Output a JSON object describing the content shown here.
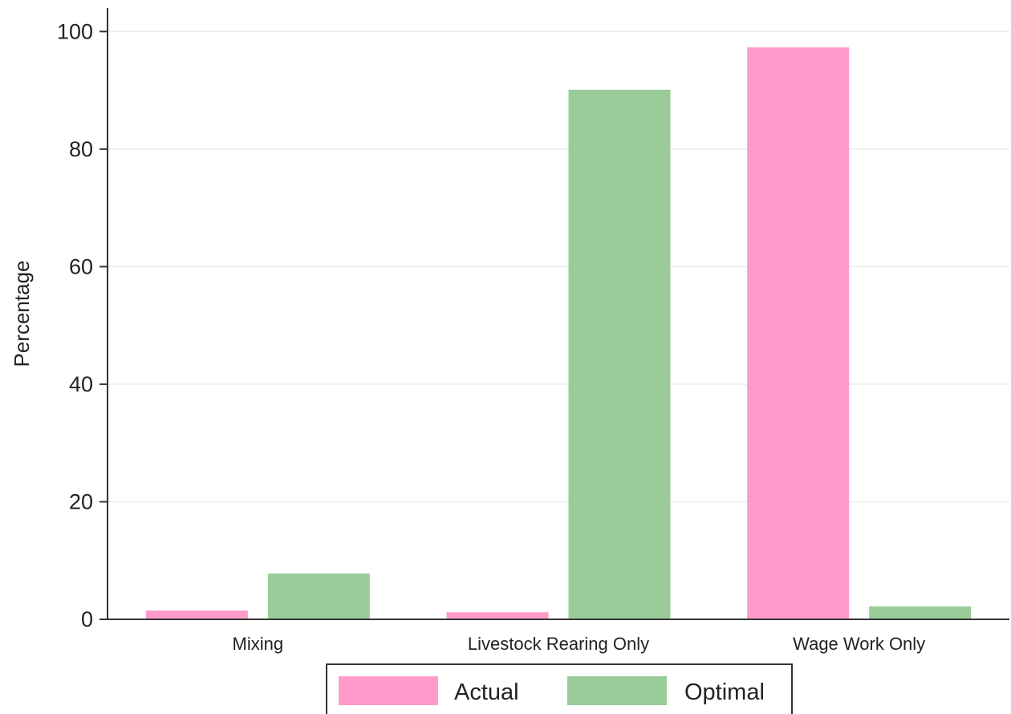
{
  "chart_data": {
    "type": "bar",
    "title": "",
    "xlabel": "",
    "ylabel": "Percentage",
    "ylim": [
      0,
      104
    ],
    "yticks": [
      0,
      20,
      40,
      60,
      80,
      100
    ],
    "grid": true,
    "legend_position": "bottom",
    "categories": [
      "Mixing",
      "Livestock Rearing Only",
      "Wage Work Only"
    ],
    "series": [
      {
        "name": "Actual",
        "color": "#ff9acb",
        "values": [
          1.5,
          1.2,
          97.3
        ]
      },
      {
        "name": "Optimal",
        "color": "#99cc99",
        "values": [
          7.8,
          90.1,
          2.2
        ]
      }
    ]
  }
}
